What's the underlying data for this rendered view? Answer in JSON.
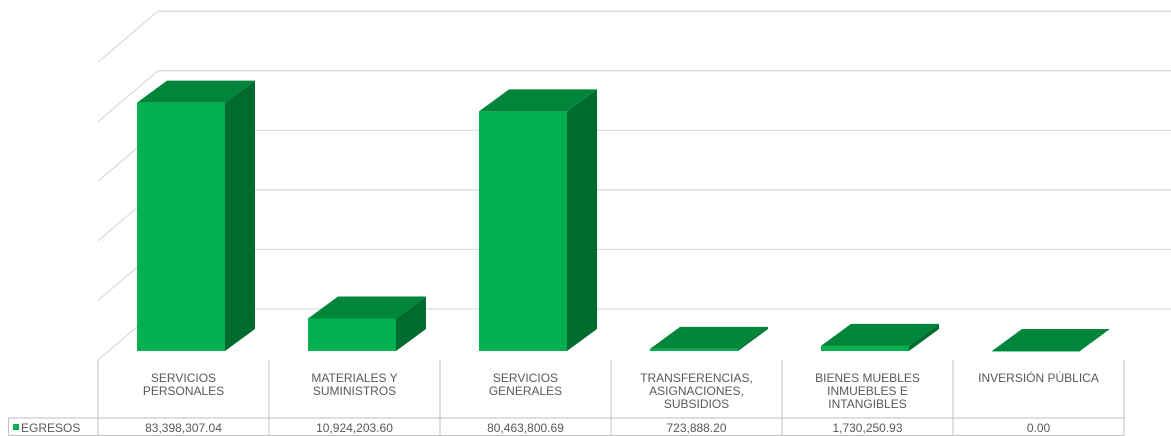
{
  "chart_data": {
    "type": "bar",
    "style": "3d-column-with-data-table",
    "categories": [
      [
        "SERVICIOS",
        "PERSONALES"
      ],
      [
        "MATERIALES Y",
        "SUMINISTROS"
      ],
      [
        "SERVICIOS",
        "GENERALES"
      ],
      [
        "TRANSFERENCIAS,",
        "ASIGNACIONES,",
        "SUBSIDIOS"
      ],
      [
        "BIENES MUEBLES",
        "INMUEBLES E",
        "INTANGIBLES"
      ],
      [
        "INVERSIÓN PÚBLICA"
      ]
    ],
    "series": [
      {
        "name": "EGRESOS",
        "values": [
          83398307.04,
          10924203.6,
          80463800.69,
          723888.2,
          1730250.93,
          0.0
        ],
        "labels": [
          "83,398,307.04",
          "10,924,203.60",
          "80,463,800.69",
          "723,888.20",
          "1,730,250.93",
          "0.00"
        ]
      }
    ],
    "ylim": [
      0,
      100000000
    ],
    "gridlines": 5,
    "grid": true,
    "legend": "data-table",
    "colors": {
      "front": "#00b050",
      "top": "#00863a",
      "side": "#006b2e",
      "grid": "#d9d9d9",
      "table": "#bfbfbf",
      "text": "#595959"
    }
  }
}
